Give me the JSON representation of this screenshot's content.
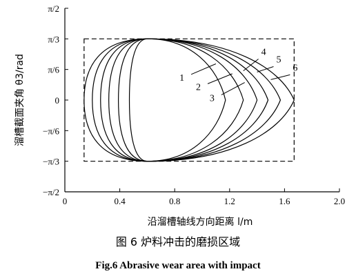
{
  "chart_data": {
    "type": "line",
    "xlabel": "沿溜槽轴线方向距离 l/m",
    "ylabel": "溜槽截面夹角 θ3/rad",
    "xlim": [
      0,
      2.0
    ],
    "ylim": [
      -1.5708,
      1.5708
    ],
    "xticks": [
      {
        "value": 0,
        "label": "0"
      },
      {
        "value": 0.4,
        "label": "0.4"
      },
      {
        "value": 0.8,
        "label": "0.8"
      },
      {
        "value": 1.2,
        "label": "1.2"
      },
      {
        "value": 1.6,
        "label": "1.6"
      },
      {
        "value": 2.0,
        "label": "2.0"
      }
    ],
    "yticks": [
      {
        "value": 1.5708,
        "label": "π/2"
      },
      {
        "value": 1.0472,
        "label": "π/3"
      },
      {
        "value": 0.5236,
        "label": "π/6"
      },
      {
        "value": 0,
        "label": "0"
      },
      {
        "value": -0.5236,
        "label": "−π/6"
      },
      {
        "value": -1.0472,
        "label": "−π/3"
      },
      {
        "value": -1.5708,
        "label": "−π/2"
      }
    ],
    "rectangle": {
      "x": [
        0.14,
        1.67
      ],
      "y": [
        -1.0472,
        1.0472
      ]
    },
    "series": [
      {
        "name": "1",
        "x_left": 0.14,
        "x_right": 1.17,
        "x_apex": 0.6
      },
      {
        "name": "2",
        "x_left": 0.2,
        "x_right": 1.3,
        "x_apex": 0.6
      },
      {
        "name": "3",
        "x_left": 0.26,
        "x_right": 1.4,
        "x_apex": 0.6
      },
      {
        "name": "4",
        "x_left": 0.32,
        "x_right": 1.48,
        "x_apex": 0.6
      },
      {
        "name": "5",
        "x_left": 0.39,
        "x_right": 1.57,
        "x_apex": 0.6
      },
      {
        "name": "6",
        "x_left": 0.47,
        "x_right": 1.67,
        "x_apex": 0.6
      }
    ],
    "curve_labels": [
      {
        "text": "1",
        "at": [
          0.88,
          0.38
        ],
        "target": [
          1.1,
          0.62
        ]
      },
      {
        "text": "2",
        "at": [
          1.0,
          0.22
        ],
        "target": [
          1.22,
          0.45
        ]
      },
      {
        "text": "3",
        "at": [
          1.1,
          0.03
        ],
        "target": [
          1.31,
          0.3
        ]
      },
      {
        "text": "4",
        "at": [
          1.42,
          0.75
        ],
        "target": [
          1.3,
          0.5
        ]
      },
      {
        "text": "5",
        "at": [
          1.53,
          0.62
        ],
        "target": [
          1.4,
          0.48
        ]
      },
      {
        "text": "6",
        "at": [
          1.65,
          0.48
        ],
        "target": [
          1.5,
          0.35
        ]
      }
    ]
  },
  "figure_caption_cn": "图 6   炉料冲击的磨损区域",
  "figure_caption_en": "Fig.6   Abrasive wear area with impact"
}
